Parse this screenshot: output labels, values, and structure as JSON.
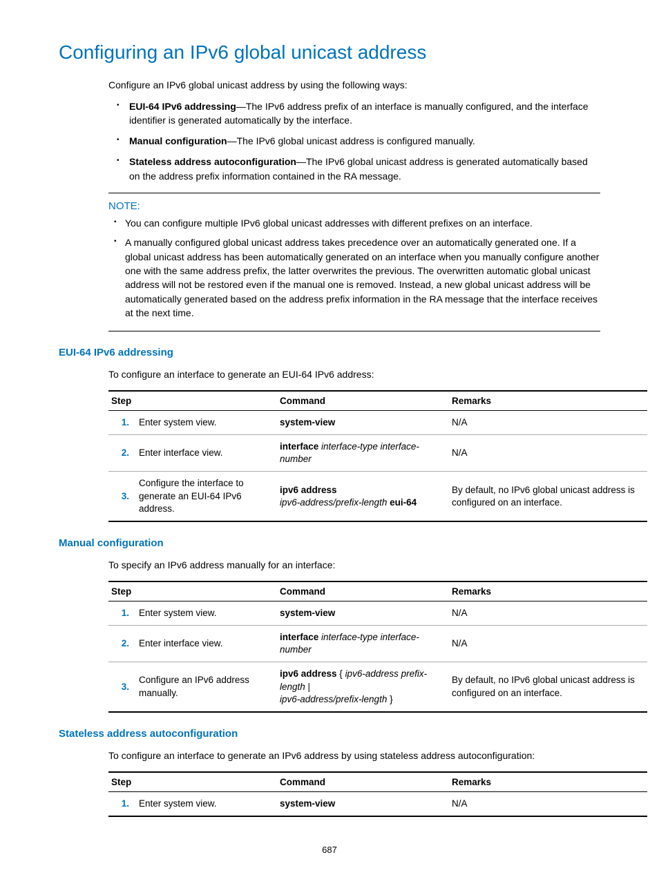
{
  "title": "Configuring an IPv6 global unicast address",
  "intro": "Configure an IPv6 global unicast address by using the following ways:",
  "bullets": [
    {
      "term": "EUI-64 IPv6 addressing",
      "text": "—The IPv6 address prefix of an interface is manually configured, and the interface identifier is generated automatically by the interface."
    },
    {
      "term": "Manual configuration",
      "text": "—The IPv6 global unicast address is configured manually."
    },
    {
      "term": "Stateless address autoconfiguration",
      "text": "—The IPv6 global unicast address is generated automatically based on the address prefix information contained in the RA message."
    }
  ],
  "note": {
    "label": "NOTE:",
    "items": [
      "You can configure multiple IPv6 global unicast addresses with different prefixes on an interface.",
      "A manually configured global unicast address takes precedence over an automatically generated one. If a global unicast address has been automatically generated on an interface when you manually configure another one with the same address prefix, the latter overwrites the previous. The overwritten automatic global unicast address will not be restored even if the manual one is removed. Instead, a new global unicast address will be automatically generated based on the address prefix information in the RA message that the interface receives at the next time."
    ]
  },
  "headers": {
    "step": "Step",
    "command": "Command",
    "remarks": "Remarks"
  },
  "sections": [
    {
      "heading": "EUI-64 IPv6 addressing",
      "intro": "To configure an interface to generate an EUI-64 IPv6 address:",
      "rows": [
        {
          "n": "1.",
          "step": "Enter system view.",
          "cmd": [
            {
              "b": "system-view"
            }
          ],
          "remarks": "N/A"
        },
        {
          "n": "2.",
          "step": "Enter interface view.",
          "cmd": [
            {
              "b": "interface "
            },
            {
              "i": "interface-type interface-number"
            }
          ],
          "remarks": "N/A"
        },
        {
          "n": "3.",
          "step": "Configure the interface to generate an EUI-64 IPv6 address.",
          "cmd": [
            {
              "b": "ipv6 address "
            },
            {
              "i": "ipv6-address/prefix-length "
            },
            {
              "b": "eui-64"
            }
          ],
          "remarks": "By default, no IPv6 global unicast address is configured on an interface."
        }
      ]
    },
    {
      "heading": "Manual configuration",
      "intro": "To specify an IPv6 address manually for an interface:",
      "rows": [
        {
          "n": "1.",
          "step": "Enter system view.",
          "cmd": [
            {
              "b": "system-view"
            }
          ],
          "remarks": "N/A"
        },
        {
          "n": "2.",
          "step": "Enter interface view.",
          "cmd": [
            {
              "b": "interface "
            },
            {
              "i": "interface-type interface-number"
            }
          ],
          "remarks": "N/A"
        },
        {
          "n": "3.",
          "step": "Configure an IPv6 address manually.",
          "cmd": [
            {
              "b": "ipv6 address"
            },
            {
              "t": " { "
            },
            {
              "i": "ipv6-address prefix-length"
            },
            {
              "t": " | "
            },
            {
              "i": "ipv6-address/prefix-length"
            },
            {
              "t": " }"
            }
          ],
          "remarks": "By default, no IPv6 global unicast address is configured on an interface."
        }
      ]
    },
    {
      "heading": "Stateless address autoconfiguration",
      "intro": "To configure an interface to generate an IPv6 address by using stateless address autoconfiguration:",
      "rows": [
        {
          "n": "1.",
          "step": "Enter system view.",
          "cmd": [
            {
              "b": "system-view"
            }
          ],
          "remarks": "N/A"
        }
      ]
    }
  ],
  "page_number": "687"
}
